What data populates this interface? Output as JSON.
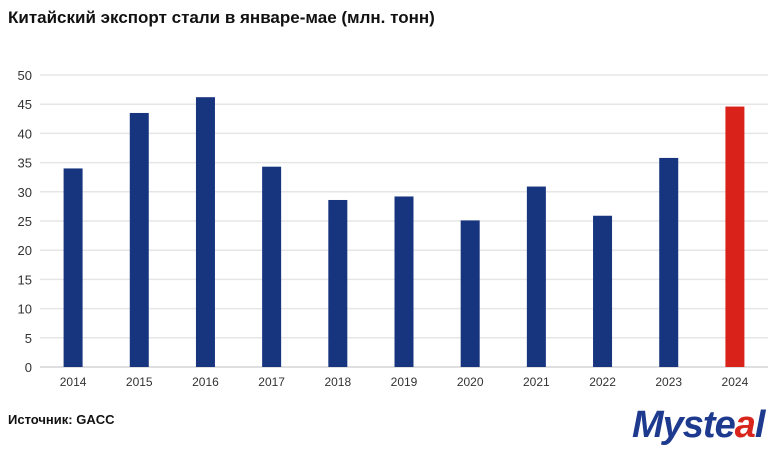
{
  "chart_data": {
    "type": "bar",
    "title": "Китайский экспорт стали в январе-мае (млн. тонн)",
    "categories": [
      "2014",
      "2015",
      "2016",
      "2017",
      "2018",
      "2019",
      "2020",
      "2021",
      "2022",
      "2023",
      "2024"
    ],
    "values": [
      34.0,
      43.5,
      46.2,
      34.3,
      28.6,
      29.2,
      25.1,
      30.9,
      25.9,
      35.8,
      44.6
    ],
    "ylim": [
      0,
      50
    ],
    "yticks": [
      0,
      5,
      10,
      15,
      20,
      25,
      30,
      35,
      40,
      45,
      50
    ],
    "grid": true,
    "colors": {
      "default": "#17347f",
      "highlight": "#d9231a"
    },
    "highlight_category": "2024"
  },
  "source": "Источник: GACC",
  "logo": {
    "text_main": "Myste",
    "text_accent": "a",
    "text_end": "l"
  }
}
